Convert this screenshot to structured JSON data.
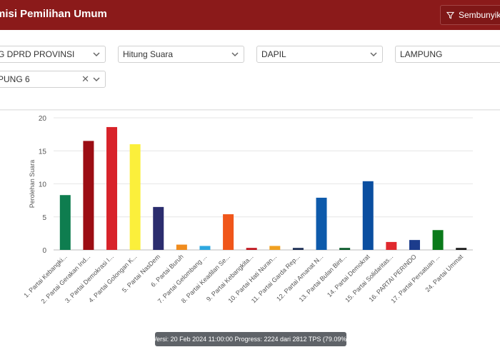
{
  "header": {
    "title": "misi Pemilihan Umum",
    "hide_label": "Sembunyikan"
  },
  "filters": {
    "election": "G DPRD PROVINSI",
    "mode": "Hitung Suara",
    "level": "DAPIL",
    "province": "LAMPUNG",
    "district": "PUNG 6"
  },
  "footer": {
    "text": "Versi: 20 Feb 2024 11:00:00 Progress: 2224 dari 2812 TPS (79.09%)"
  },
  "chart_data": {
    "type": "bar",
    "ylabel": "Perolehan Suara",
    "ylim": [
      0,
      20
    ],
    "yticks": [
      "0",
      "5",
      "10",
      "15",
      "20"
    ],
    "categories": [
      "1. Partai Kebangki...",
      "2. Partai Gerakan Ind...",
      "3. Partai Demokrasi I...",
      "4. Partai Golongan K...",
      "5. Partai NasDem",
      "6. Partai Buruh",
      "7. Partai Gelombang ...",
      "8. Partai Keadilan Se...",
      "9. Partai Kebangkita...",
      "10. Partai Hati Nuran...",
      "11. Partai Garda Rep...",
      "12. Partai Amanat N...",
      "13. Partai Bulan Bint...",
      "14. Partai Demokrat",
      "15. Partai Solidaritas...",
      "16. PARTAI PERINDO",
      "17. Partai Persatuan ...",
      "24. Partai Ummat"
    ],
    "values": [
      8.3,
      16.5,
      18.6,
      16.0,
      6.5,
      0.8,
      0.6,
      5.4,
      0.3,
      0.6,
      0.3,
      7.9,
      0.3,
      10.4,
      1.2,
      1.5,
      3.0,
      0.3
    ],
    "colors": [
      "#0e7d4f",
      "#9c0d14",
      "#d8232a",
      "#fbef3b",
      "#2b2d6e",
      "#f08c1e",
      "#2ea8e0",
      "#f0561a",
      "#c0141c",
      "#f0a020",
      "#1c2e54",
      "#0d5aab",
      "#0a5a2a",
      "#0a4ea0",
      "#e0292e",
      "#1c3c8c",
      "#0a7a1a",
      "#1a1a1a"
    ]
  }
}
